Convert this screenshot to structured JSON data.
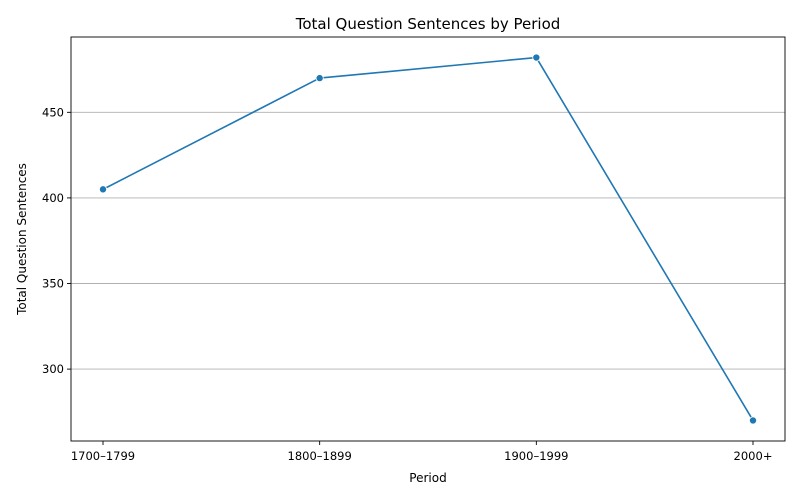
{
  "chart_data": {
    "type": "line",
    "title": "Total Question Sentences by Period",
    "xlabel": "Period",
    "ylabel": "Total Question Sentences",
    "categories": [
      "1700–1799",
      "1800–1899",
      "1900–1999",
      "2000+"
    ],
    "series": [
      {
        "values": [
          405,
          470,
          482,
          270
        ],
        "color": "#1f77b4",
        "marker": "circle"
      }
    ],
    "ylim": [
      258,
      494
    ],
    "yticks": [
      300,
      350,
      400,
      450
    ],
    "grid": "horizontal"
  }
}
